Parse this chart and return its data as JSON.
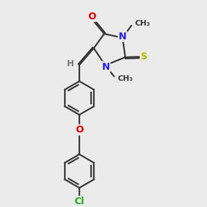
{
  "bg_color": "#ebebeb",
  "bond_color": "#333333",
  "bond_width": 1.6,
  "dbl_sep": 0.055,
  "atom_colors": {
    "O": "#ee0000",
    "N": "#2222ee",
    "S": "#bbbb00",
    "Cl": "#22aa22",
    "H": "#777777",
    "C": "#333333"
  },
  "font_size": 9
}
